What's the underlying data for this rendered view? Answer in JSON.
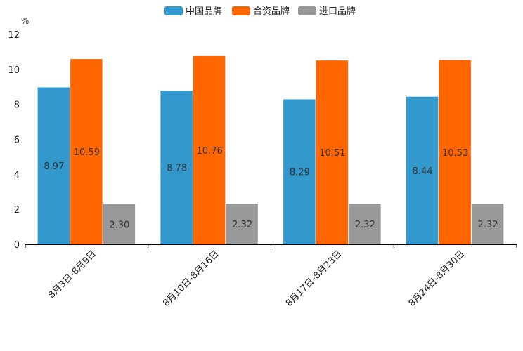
{
  "chart_data": {
    "type": "bar",
    "title": "",
    "unit_label": "%",
    "xlabel": "",
    "ylabel": "%",
    "ylim": [
      0,
      12
    ],
    "yticks": [
      0,
      2,
      4,
      6,
      8,
      10,
      12
    ],
    "categories": [
      "8月3日-8月9日",
      "8月10日-8月16日",
      "8月17日-8月23日",
      "8月24日-8月30日"
    ],
    "series": [
      {
        "name": "中国品牌",
        "color": "#3399cc",
        "values": [
          8.97,
          8.78,
          8.29,
          8.44
        ]
      },
      {
        "name": "合资品牌",
        "color": "#ff6600",
        "values": [
          10.59,
          10.76,
          10.51,
          10.53
        ]
      },
      {
        "name": "进口品牌",
        "color": "#999999",
        "values": [
          2.3,
          2.32,
          2.32,
          2.32
        ]
      }
    ],
    "legend_position": "top-center",
    "grid": false
  }
}
